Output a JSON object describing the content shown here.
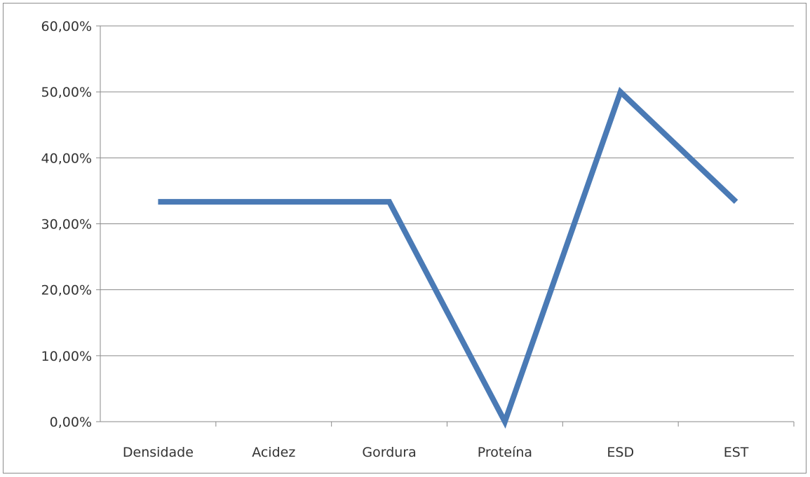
{
  "chart_data": {
    "type": "line",
    "title": "",
    "xlabel": "",
    "ylabel": "",
    "categories": [
      "Densidade",
      "Acidez",
      "Gordura",
      "Proteína",
      "ESD",
      "EST"
    ],
    "series": [
      {
        "values": [
          33.33,
          33.33,
          33.33,
          0.0,
          50.0,
          33.33
        ],
        "color": "#4a7ab5"
      }
    ],
    "ylim": [
      0,
      60
    ],
    "yticks": [
      {
        "value": 0,
        "label": "0,00%"
      },
      {
        "value": 10,
        "label": "10,00%"
      },
      {
        "value": 20,
        "label": "20,00%"
      },
      {
        "value": 30,
        "label": "30,00%"
      },
      {
        "value": 40,
        "label": "40,00%"
      },
      {
        "value": 50,
        "label": "50,00%"
      },
      {
        "value": 60,
        "label": "60,00%"
      }
    ],
    "grid": true,
    "legend": "none"
  }
}
